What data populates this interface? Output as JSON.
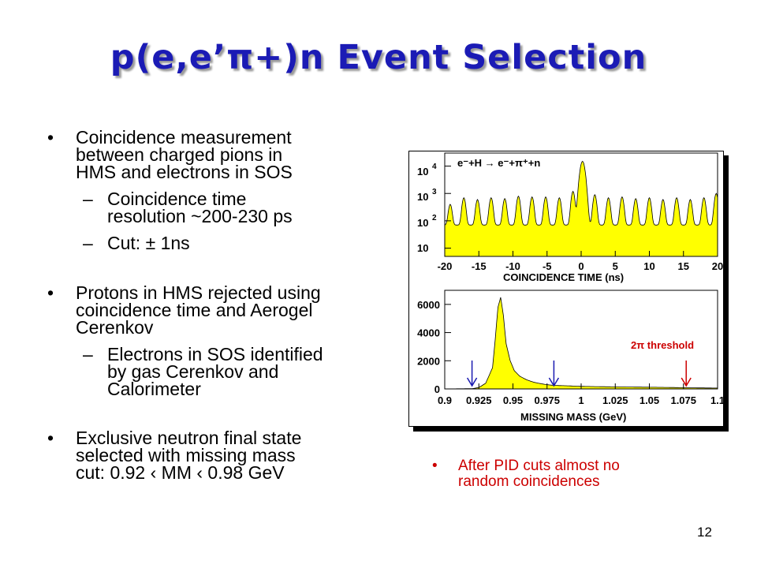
{
  "slide": {
    "title": "p(e,e’π+)n Event Selection",
    "page_number": "12"
  },
  "bullets": [
    {
      "lines": [
        "Coincidence measurement",
        "between charged pions in",
        "HMS and electrons in SOS"
      ],
      "sub": [
        {
          "lines": [
            "Coincidence time",
            "resolution ~200-230 ps"
          ]
        },
        {
          "lines": [
            "Cut: ± 1ns"
          ]
        }
      ]
    },
    {
      "lines": [
        "Protons in HMS rejected using",
        "coincidence time and Aerogel",
        "Cerenkov"
      ],
      "sub": [
        {
          "lines": [
            "Electrons in SOS identified",
            "by gas Cerenkov and",
            "Calorimeter"
          ]
        }
      ]
    },
    {
      "lines": [
        "Exclusive neutron final state",
        "selected with missing mass",
        "cut: 0.92 ‹ MM ‹ 0.98 GeV"
      ],
      "sub": []
    }
  ],
  "side_note": {
    "lines": [
      "After PID cuts almost no",
      "random coincidences"
    ],
    "color": "#cc0000"
  },
  "chart_data": [
    {
      "type": "area",
      "title": "e⁻+H → e⁻+π⁺+n",
      "xlabel": "COINCIDENCE TIME (ns)",
      "ylabel": "",
      "log_y": true,
      "xlim": [
        -20,
        20
      ],
      "ylim": [
        5,
        30000
      ],
      "x_ticks": [
        "-20",
        "-15",
        "-10",
        "-5",
        "0",
        "5",
        "10",
        "15",
        "20"
      ],
      "y_ticks": [
        {
          "base": "10",
          "exp": ""
        },
        {
          "base": "10",
          "exp": "2"
        },
        {
          "base": "10",
          "exp": "3"
        },
        {
          "base": "10",
          "exp": "4"
        }
      ],
      "fill_color": "#ffff00",
      "series": [
        {
          "x": [
            -19.2,
            -17.2,
            -15.2,
            -13.2,
            -11.2,
            -9.2,
            -7.2,
            -5.2,
            -3.2,
            -1.2,
            0.2,
            2.0,
            4.0,
            6.0,
            8.0,
            10.0,
            12.0,
            14.0,
            16.0,
            18.0,
            19.8
          ],
          "values": [
            400,
            700,
            600,
            700,
            650,
            800,
            750,
            750,
            700,
            1200,
            15000,
            900,
            700,
            750,
            650,
            700,
            600,
            700,
            600,
            700,
            1000
          ]
        }
      ],
      "baseline": 70,
      "grid": false
    },
    {
      "type": "area",
      "title": "",
      "xlabel": "MISSING MASS (GeV)",
      "ylabel": "",
      "xlim": [
        0.9,
        1.1
      ],
      "ylim": [
        0,
        7000
      ],
      "x_ticks": [
        "0.9",
        "0.925",
        "0.95",
        "0.975",
        "1",
        "1.025",
        "1.05",
        "1.075",
        "1.1"
      ],
      "y_ticks": [
        "0",
        "2000",
        "4000",
        "6000"
      ],
      "fill_color": "#ffff00",
      "series": [
        {
          "x": [
            0.9,
            0.92,
            0.925,
            0.93,
            0.935,
            0.937,
            0.939,
            0.941,
            0.943,
            0.945,
            0.948,
            0.951,
            0.955,
            0.96,
            0.965,
            0.97,
            0.975,
            0.98,
            0.99,
            1.0,
            1.02,
            1.04,
            1.06,
            1.08,
            1.1
          ],
          "values": [
            0,
            20,
            100,
            400,
            1500,
            3500,
            5800,
            6500,
            5200,
            3200,
            2000,
            1300,
            900,
            650,
            480,
            380,
            300,
            250,
            220,
            180,
            150,
            130,
            110,
            80,
            60
          ]
        }
      ],
      "annotations": [
        {
          "text": "2π threshold",
          "color": "#cc0000"
        }
      ],
      "markers": [
        {
          "x": 0.92,
          "color": "#1a1ab0"
        },
        {
          "x": 0.98,
          "color": "#1a1ab0"
        },
        {
          "x": 1.077,
          "color": "#cc0000"
        }
      ],
      "grid": false
    }
  ]
}
